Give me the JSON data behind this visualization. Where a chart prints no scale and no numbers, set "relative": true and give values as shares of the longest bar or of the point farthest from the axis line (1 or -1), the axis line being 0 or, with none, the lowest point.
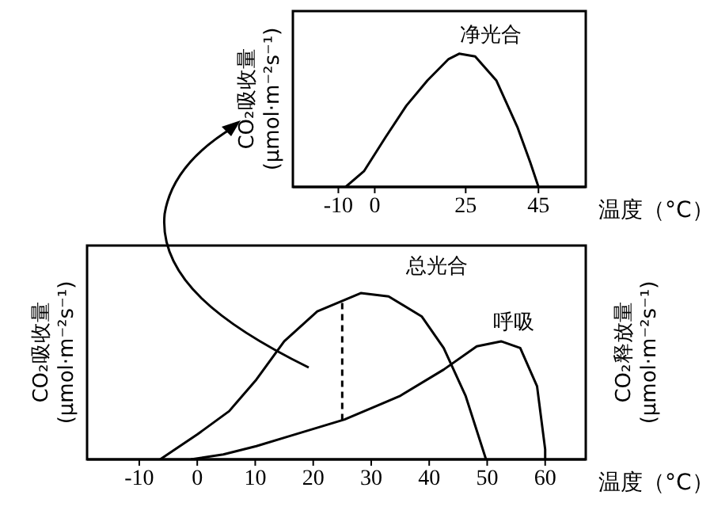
{
  "chart_data": [
    {
      "type": "line",
      "relative": true,
      "ylabel": "CO₂吸收量 (μmol·m⁻²s⁻¹)",
      "xlabel": "温度（°C）",
      "xlim": [
        -22.5,
        58
      ],
      "xticks": [
        -10,
        0,
        25,
        45
      ],
      "series": [
        {
          "name": "净光合",
          "color": "#000000",
          "x": [
            -8,
            -2.9,
            2.9,
            8.7,
            14.5,
            20.3,
            23.2,
            27.6,
            33.4,
            39.2,
            42.8,
            45
          ],
          "values": [
            0,
            0.12,
            0.37,
            0.61,
            0.8,
            0.96,
            1.0,
            0.98,
            0.8,
            0.45,
            0.18,
            0
          ]
        }
      ]
    },
    {
      "type": "line",
      "relative": true,
      "ylabel": "CO₂吸收量 (μmol·m⁻²s⁻¹)",
      "y2label": "CO₂释放量 (μmol·m⁻²s⁻¹)",
      "xlabel": "温度（°C）",
      "xlim": [
        -19,
        67
      ],
      "xticks": [
        -10,
        0,
        10,
        20,
        30,
        40,
        50,
        60
      ],
      "ref_lines": [
        {
          "axis": "x",
          "value": 25,
          "line_style": "dashed",
          "color": "#000000"
        }
      ],
      "series": [
        {
          "name": "总光合",
          "color": "#000000",
          "x": [
            -6.4,
            0,
            5.5,
            10.2,
            15,
            20.7,
            28.2,
            33,
            38.7,
            42.5,
            46.3,
            49.8
          ],
          "values": [
            0,
            0.15,
            0.29,
            0.48,
            0.71,
            0.89,
            1.0,
            0.98,
            0.86,
            0.67,
            0.38,
            0
          ]
        },
        {
          "name": "呼吸",
          "color": "#000000",
          "x": [
            -1.1,
            4.5,
            10.2,
            15.9,
            25.4,
            34.9,
            42.5,
            48.2,
            52.4,
            55.7,
            58.6,
            60,
            60
          ],
          "values": [
            0,
            0.03,
            0.08,
            0.14,
            0.24,
            0.38,
            0.54,
            0.68,
            0.71,
            0.67,
            0.44,
            0.06,
            0
          ]
        }
      ]
    }
  ]
}
